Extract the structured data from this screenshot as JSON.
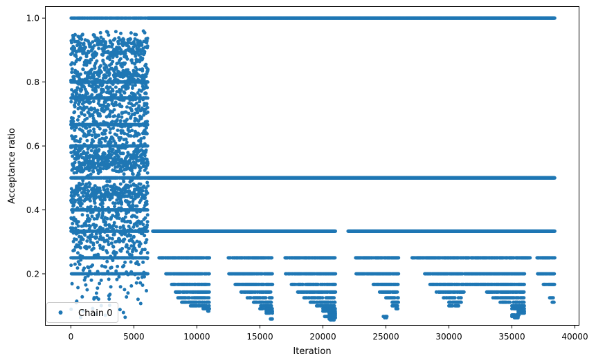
{
  "chart_data": {
    "type": "scatter",
    "xlabel": "Iteration",
    "ylabel": "Acceptance ratio",
    "xlim": [
      -2000,
      40300
    ],
    "ylim": [
      0.04,
      1.035
    ],
    "x_ticks": [
      0,
      5000,
      10000,
      15000,
      20000,
      25000,
      30000,
      35000,
      40000
    ],
    "x_tick_labels": [
      "0",
      "5000",
      "10000",
      "15000",
      "20000",
      "25000",
      "30000",
      "35000",
      "40000"
    ],
    "y_ticks": [
      0.2,
      0.4,
      0.6,
      0.8,
      1.0
    ],
    "y_tick_labels": [
      "0.2",
      "0.4",
      "0.6",
      "0.8",
      "1.0"
    ],
    "grid": false,
    "legend": {
      "position": "lower-left",
      "entries": [
        "Chain 0"
      ]
    },
    "colors": {
      "series": "#1f77b4"
    },
    "series": [
      {
        "name": "Chain 0",
        "marker": "point",
        "total_iterations": 38400,
        "early_phase": {
          "x_range": [
            0,
            6100
          ],
          "y_range": [
            0.05,
            1.0
          ],
          "dense_bands": [
            {
              "y_center": 0.91,
              "spread": 0.025
            },
            {
              "y_center": 0.82,
              "spread": 0.03
            },
            {
              "y_center": 0.73,
              "spread": 0.04
            },
            {
              "y_center": 0.62,
              "spread": 0.05
            },
            {
              "y_center": 0.55,
              "spread": 0.02
            },
            {
              "y_center": 0.45,
              "spread": 0.02
            },
            {
              "y_center": 0.35,
              "spread": 0.04
            },
            {
              "y_center": 0.25,
              "spread": 0.06
            },
            {
              "y_center": 0.12,
              "spread": 0.05
            }
          ],
          "discrete_levels": [
            1.0,
            0.8,
            0.75,
            0.6667,
            0.6,
            0.5,
            0.4,
            0.3333,
            0.25,
            0.2
          ]
        },
        "late_phase": {
          "x_range": [
            6100,
            38400
          ],
          "levels": [
            {
              "y": 1.0,
              "segments": [
                [
                  6100,
                  38400
                ]
              ]
            },
            {
              "y": 0.5,
              "segments": [
                [
                  6100,
                  38400
                ]
              ]
            },
            {
              "y": 0.3333,
              "segments": [
                [
                  6500,
                  21000
                ],
                [
                  22000,
                  38400
                ]
              ]
            },
            {
              "y": 0.25,
              "segments": [
                [
                  7000,
                  11000
                ],
                [
                  12500,
                  16000
                ],
                [
                  17000,
                  21000
                ],
                [
                  22600,
                  26000
                ],
                [
                  27000,
                  36500
                ],
                [
                  37000,
                  38400
                ]
              ]
            },
            {
              "y": 0.2,
              "segments": [
                [
                  7500,
                  11000
                ],
                [
                  12500,
                  16000
                ],
                [
                  17000,
                  21000
                ],
                [
                  22600,
                  26000
                ],
                [
                  28000,
                  36000
                ],
                [
                  37000,
                  38400
                ]
              ]
            },
            {
              "y": 0.1667,
              "segments": [
                [
                  8000,
                  11000
                ],
                [
                  13000,
                  16000
                ],
                [
                  17500,
                  21000
                ],
                [
                  24000,
                  26000
                ],
                [
                  28500,
                  36000
                ],
                [
                  37500,
                  38400
                ]
              ]
            },
            {
              "y": 0.1429,
              "segments": [
                [
                  8300,
                  11000
                ],
                [
                  13500,
                  16000
                ],
                [
                  18000,
                  21000
                ],
                [
                  24500,
                  26000
                ],
                [
                  29000,
                  31200
                ],
                [
                  33000,
                  36000
                ]
              ]
            },
            {
              "y": 0.125,
              "segments": [
                [
                  8500,
                  11000
                ],
                [
                  14000,
                  16000
                ],
                [
                  18500,
                  21000
                ],
                [
                  25000,
                  26000
                ],
                [
                  29500,
                  31000
                ],
                [
                  33500,
                  36000
                ],
                [
                  38000,
                  38400
                ]
              ]
            },
            {
              "y": 0.1111,
              "segments": [
                [
                  8800,
                  11000
                ],
                [
                  14500,
                  16000
                ],
                [
                  19000,
                  21000
                ],
                [
                  25500,
                  26000
                ],
                [
                  30000,
                  31000
                ],
                [
                  34000,
                  36000
                ],
                [
                  38200,
                  38400
                ]
              ]
            },
            {
              "y": 0.1,
              "segments": [
                [
                  9500,
                  11000
                ],
                [
                  15000,
                  16000
                ],
                [
                  19500,
                  21000
                ],
                [
                  25500,
                  26000
                ],
                [
                  30000,
                  30800
                ],
                [
                  35000,
                  36000
                ]
              ]
            },
            {
              "y": 0.0909,
              "segments": [
                [
                  10500,
                  11000
                ],
                [
                  15000,
                  16000
                ],
                [
                  20000,
                  21000
                ],
                [
                  25800,
                  26000
                ],
                [
                  35000,
                  36000
                ]
              ]
            },
            {
              "y": 0.0833,
              "segments": [
                [
                  10800,
                  11000
                ],
                [
                  15500,
                  16000
                ],
                [
                  20000,
                  21000
                ],
                [
                  35500,
                  36000
                ]
              ]
            },
            {
              "y": 0.0769,
              "segments": [
                [
                  15500,
                  16000
                ],
                [
                  20500,
                  21000
                ],
                [
                  35500,
                  36000
                ]
              ]
            },
            {
              "y": 0.0714,
              "segments": [
                [
                  20500,
                  21000
                ],
                [
                  35000,
                  35600
                ]
              ]
            },
            {
              "y": 0.0667,
              "segments": [
                [
                  20000,
                  21000
                ],
                [
                  24800,
                  25100
                ],
                [
                  35000,
                  35500
                ]
              ]
            },
            {
              "y": 0.0625,
              "segments": [
                [
                  20500,
                  21000
                ],
                [
                  24900,
                  25100
                ],
                [
                  35200,
                  35500
                ]
              ]
            },
            {
              "y": 0.0588,
              "segments": [
                [
                  15700,
                  16000
                ],
                [
                  20500,
                  20900
                ]
              ]
            },
            {
              "y": 0.0556,
              "segments": [
                [
                  20600,
                  20900
                ]
              ]
            }
          ]
        }
      }
    ]
  }
}
